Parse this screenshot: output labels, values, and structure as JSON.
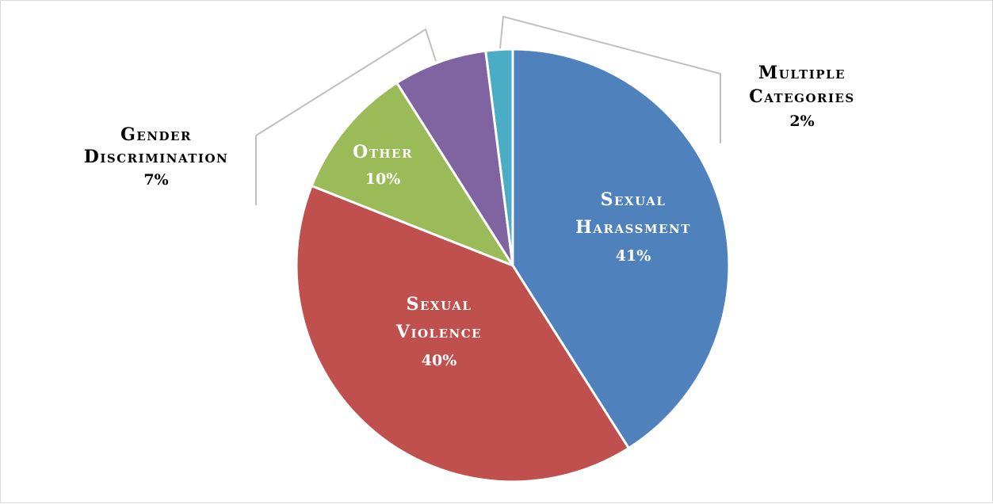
{
  "chart_data": {
    "type": "pie",
    "title": "",
    "slices": [
      {
        "label_lines": [
          "Sexual",
          "Harassment"
        ],
        "value": 41,
        "pct_label": "41%",
        "color": "#4f81bd"
      },
      {
        "label_lines": [
          "Sexual",
          "Violence"
        ],
        "value": 40,
        "pct_label": "40%",
        "color": "#c0504d"
      },
      {
        "label_lines": [
          "Other"
        ],
        "value": 10,
        "pct_label": "10%",
        "color": "#9bbb59"
      },
      {
        "label_lines": [
          "Gender",
          "Discrimination"
        ],
        "value": 7,
        "pct_label": "7%",
        "color": "#8064a2"
      },
      {
        "label_lines": [
          "Multiple",
          "Categories"
        ],
        "value": 2,
        "pct_label": "2%",
        "color": "#4bacc6"
      }
    ],
    "start_angle_deg": 0,
    "direction": "clockwise",
    "leader_line_color": "#bfbfbf"
  }
}
